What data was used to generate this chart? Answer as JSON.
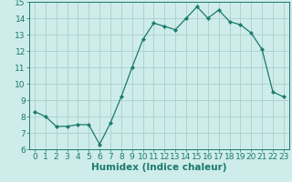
{
  "x": [
    0,
    1,
    2,
    3,
    4,
    5,
    6,
    7,
    8,
    9,
    10,
    11,
    12,
    13,
    14,
    15,
    16,
    17,
    18,
    19,
    20,
    21,
    22,
    23
  ],
  "y": [
    8.3,
    8.0,
    7.4,
    7.4,
    7.5,
    7.5,
    6.3,
    7.6,
    9.2,
    11.0,
    12.7,
    13.7,
    13.5,
    13.3,
    14.0,
    14.7,
    14.0,
    14.5,
    13.8,
    13.6,
    13.1,
    12.1,
    9.5,
    9.2
  ],
  "line_color": "#1a7a6e",
  "marker": "D",
  "marker_size": 2.2,
  "bg_color": "#ceecea",
  "grid_color": "#aed4d0",
  "xlabel": "Humidex (Indice chaleur)",
  "xlim": [
    -0.5,
    23.5
  ],
  "ylim": [
    6,
    15
  ],
  "yticks": [
    6,
    7,
    8,
    9,
    10,
    11,
    12,
    13,
    14,
    15
  ],
  "xticks": [
    0,
    1,
    2,
    3,
    4,
    5,
    6,
    7,
    8,
    9,
    10,
    11,
    12,
    13,
    14,
    15,
    16,
    17,
    18,
    19,
    20,
    21,
    22,
    23
  ],
  "tick_color": "#1a7a6e",
  "label_color": "#1a7a6e",
  "xlabel_fontsize": 7.5,
  "tick_fontsize": 6.5
}
